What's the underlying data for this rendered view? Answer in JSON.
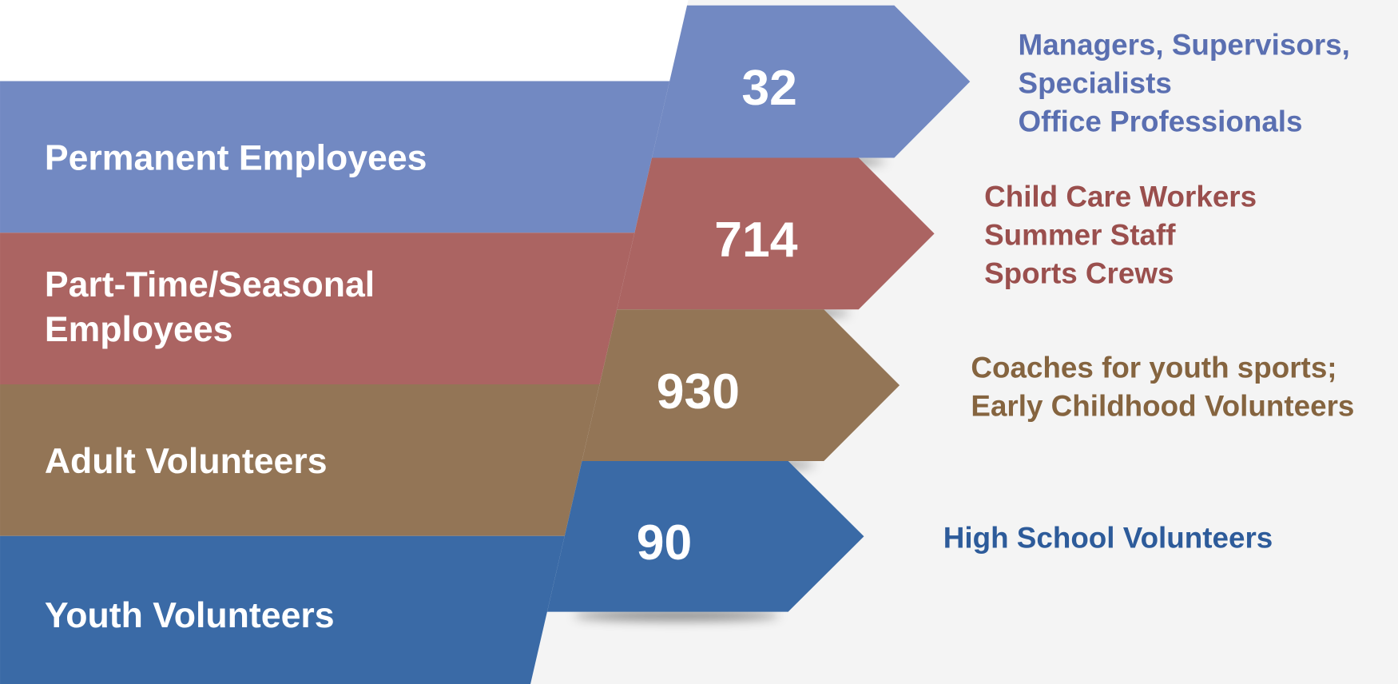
{
  "rows": [
    {
      "label": [
        "Permanent Employees"
      ],
      "count": 32,
      "color": "#7289c2",
      "text_color": "#5a6fb1",
      "description": [
        "Managers, Supervisors,",
        "Specialists",
        "Office Professionals"
      ]
    },
    {
      "label": [
        "Part-Time/Seasonal",
        "Employees"
      ],
      "count": 714,
      "color": "#ab6462",
      "text_color": "#9a4f4d",
      "description": [
        "Child Care Workers",
        "Summer Staff",
        "Sports Crews"
      ]
    },
    {
      "label": [
        "Adult Volunteers"
      ],
      "count": 930,
      "color": "#937556",
      "text_color": "#85643f",
      "description": [
        "Coaches for youth sports;",
        "Early Childhood Volunteers"
      ]
    },
    {
      "label": [
        "Youth Volunteers"
      ],
      "count": 90,
      "color": "#3a6aa6",
      "text_color": "#2d5b9a",
      "description": [
        "High School Volunteers"
      ]
    }
  ]
}
